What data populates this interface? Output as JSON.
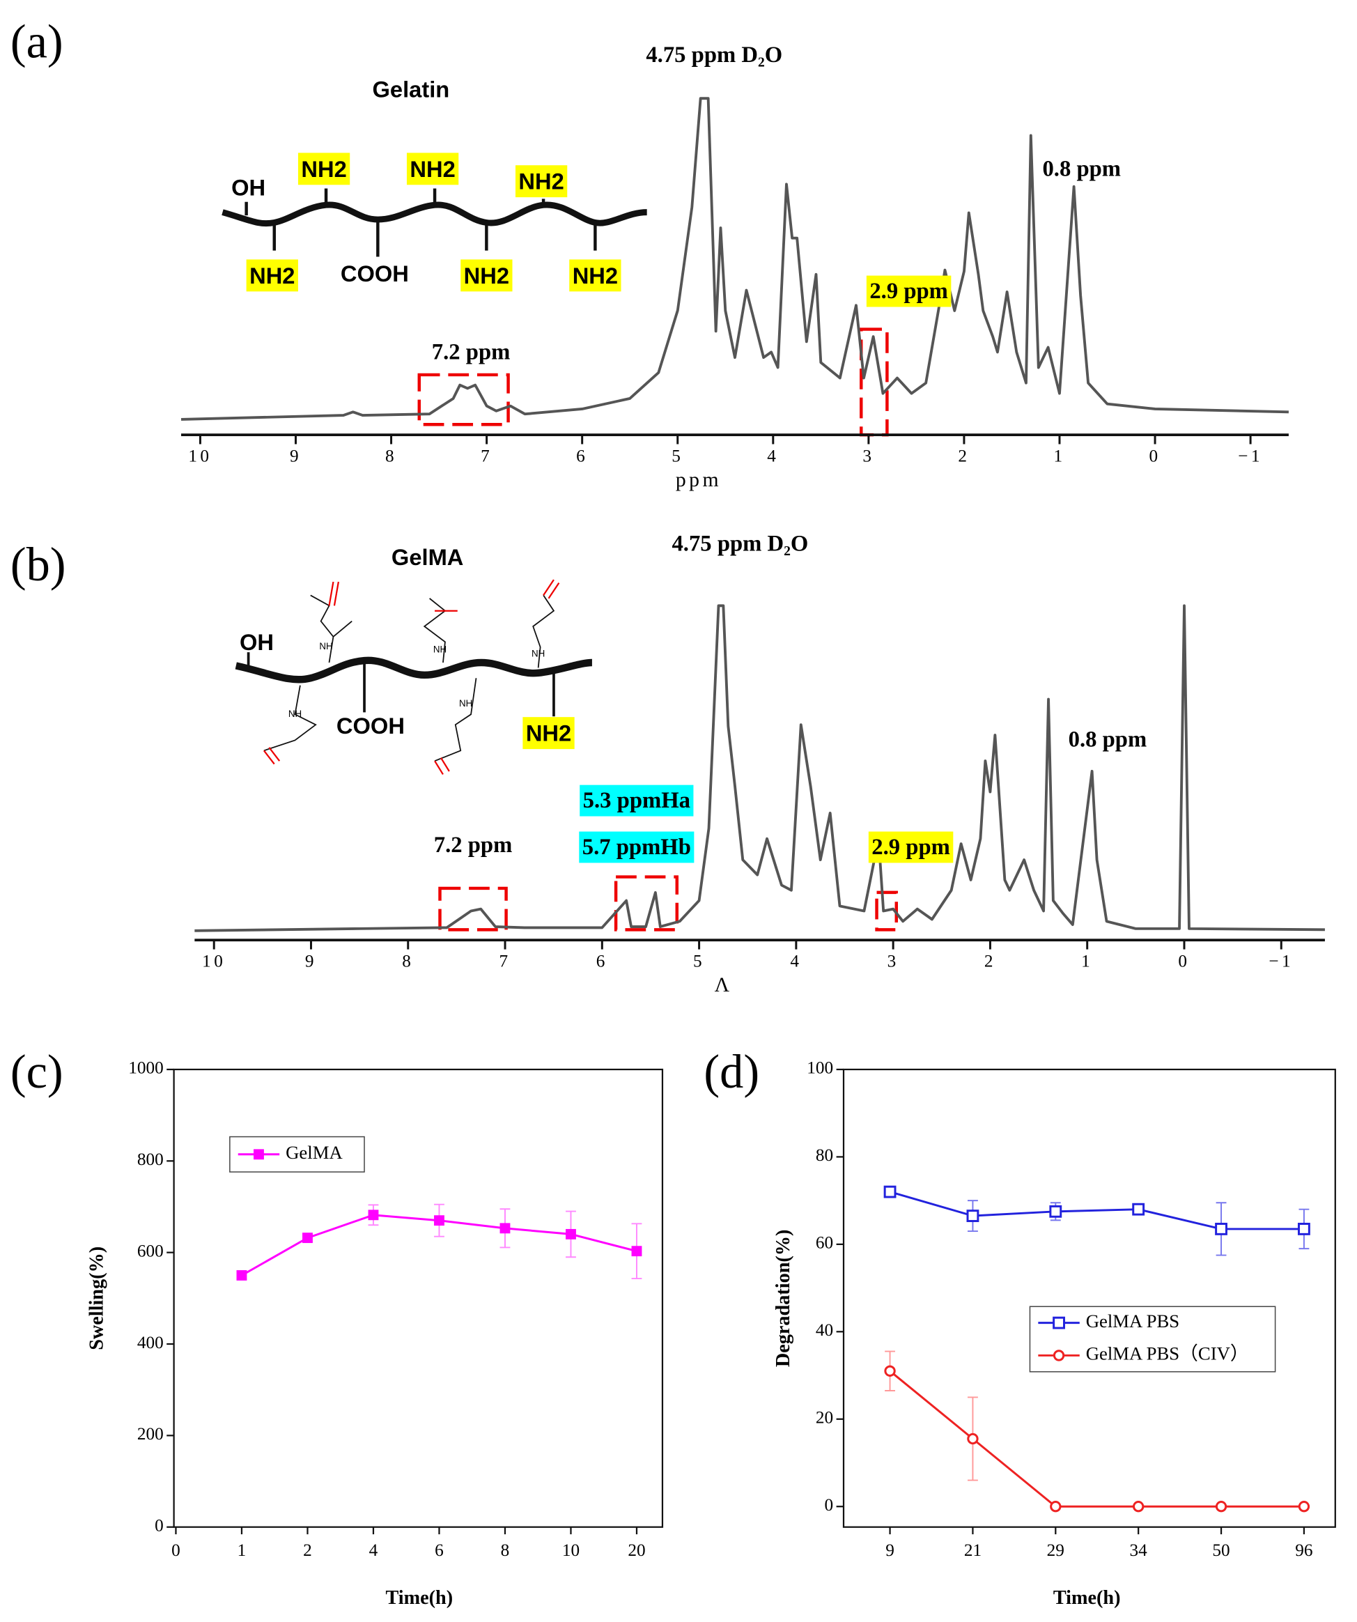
{
  "chart_data": [
    {
      "type": "line",
      "panel_label": "(a)",
      "xlabel": "ppm",
      "color": "#555555",
      "annotations": [
        "4.75 ppm D₂O",
        "0.8 ppm",
        "2.9 ppm",
        "7.2 ppm"
      ],
      "structure": [
        "Gelatin",
        "OH",
        "NH2",
        "NH2",
        "NH2",
        "NH2",
        "NH2",
        "NH2",
        "COOH"
      ],
      "xlim": [
        10.2,
        -1.4
      ],
      "ylim": [
        0,
        100
      ],
      "xticks": [
        10,
        9,
        8,
        7,
        6,
        5,
        4,
        3,
        2,
        1,
        0,
        {
          "value": -1,
          "label": "−1"
        }
      ],
      "x": [
        10.2,
        8.5,
        8.4,
        8.3,
        7.6,
        7.35,
        7.28,
        7.2,
        7.12,
        7.0,
        6.9,
        6.75,
        6.6,
        6.0,
        5.5,
        5.2,
        5.0,
        4.85,
        4.76,
        4.68,
        4.6,
        4.55,
        4.5,
        4.4,
        4.28,
        4.1,
        4.02,
        3.95,
        3.86,
        3.8,
        3.75,
        3.65,
        3.55,
        3.5,
        3.3,
        3.13,
        3.05,
        2.95,
        2.85,
        2.7,
        2.55,
        2.4,
        2.25,
        2.2,
        2.1,
        2.0,
        1.95,
        1.85,
        1.8,
        1.7,
        1.65,
        1.55,
        1.45,
        1.35,
        1.3,
        1.22,
        1.12,
        1.0,
        0.85,
        0.78,
        0.7,
        0.5,
        0.0,
        -1.4
      ],
      "values": [
        4.6,
        5.8,
        6.8,
        5.8,
        6.2,
        10.8,
        14.8,
        13.8,
        14.8,
        8.6,
        7.1,
        8.6,
        6.2,
        7.7,
        10.8,
        18.5,
        37,
        67.7,
        100,
        100,
        30.8,
        61.5,
        36.9,
        23,
        43,
        23,
        24.6,
        20,
        74.5,
        58.5,
        58.5,
        27.7,
        47.7,
        21.5,
        16.9,
        38.5,
        16.9,
        29.2,
        12.3,
        16.9,
        12.3,
        15.4,
        40,
        49,
        36.9,
        48.6,
        66,
        47.7,
        36.9,
        29.2,
        24.6,
        42.5,
        24.6,
        15.4,
        89,
        20,
        26,
        12.3,
        73.8,
        41.5,
        15.4,
        9.2,
        7.7,
        6.8
      ]
    },
    {
      "type": "line",
      "panel_label": "(b)",
      "xlabel": "Λ",
      "color": "#555555",
      "annotations": [
        "4.75 ppm D₂O",
        "0.8 ppm",
        "2.9 ppm",
        "7.2 ppm",
        "5.3 ppmHa",
        "5.7 ppmHb"
      ],
      "structure": [
        "GelMA",
        "OH",
        "COOH",
        "NH2",
        "NH",
        "NH",
        "NH",
        "NH",
        "NH"
      ],
      "xlim": [
        10.2,
        -1.45
      ],
      "ylim": [
        0,
        100
      ],
      "xticks": [
        10,
        9,
        8,
        7,
        6,
        5,
        4,
        3,
        2,
        1,
        0,
        {
          "value": -1,
          "label": "−1"
        }
      ],
      "x": [
        10.2,
        8.5,
        7.6,
        7.35,
        7.25,
        7.1,
        6.8,
        6.0,
        5.75,
        5.7,
        5.55,
        5.45,
        5.4,
        5.2,
        5.0,
        4.9,
        4.8,
        4.75,
        4.7,
        4.63,
        4.55,
        4.4,
        4.3,
        4.15,
        4.05,
        3.95,
        3.85,
        3.75,
        3.65,
        3.55,
        3.3,
        3.15,
        3.1,
        3.0,
        2.9,
        2.75,
        2.6,
        2.4,
        2.3,
        2.2,
        2.1,
        2.05,
        2.0,
        1.95,
        1.85,
        1.8,
        1.65,
        1.55,
        1.45,
        1.4,
        1.35,
        1.25,
        1.15,
        0.95,
        0.9,
        0.8,
        0.5,
        0.05,
        0.0,
        -0.05,
        -1.45
      ],
      "values": [
        2.8,
        3.4,
        3.7,
        8.7,
        9.3,
        4,
        3.7,
        3.7,
        11.8,
        4,
        4,
        14.2,
        4,
        5.6,
        11.8,
        33.4,
        100,
        100,
        64,
        45.8,
        24,
        19.5,
        30.3,
        16.4,
        14.9,
        64.4,
        45.8,
        24,
        38,
        10.2,
        8.7,
        30.3,
        8.7,
        9.3,
        5.6,
        9.3,
        6.2,
        14.9,
        28.8,
        18,
        30.3,
        53.6,
        44.3,
        61.3,
        18,
        14.9,
        24,
        14.9,
        8.7,
        72,
        11.8,
        8,
        4.6,
        50.5,
        24,
        5.6,
        3.4,
        3.4,
        100,
        3.4,
        3.1
      ]
    },
    {
      "type": "line",
      "panel_label": "(c)",
      "xlabel": "Time(h)",
      "ylabel": "Swelling(%)",
      "categories": [
        "0",
        "1",
        "2",
        "4",
        "6",
        "8",
        "10",
        "20"
      ],
      "ylim": [
        0,
        1000
      ],
      "yticks": [
        0,
        200,
        400,
        600,
        800,
        1000
      ],
      "series": [
        {
          "name": "GelMA",
          "color": "#ff00ff",
          "error_color": "#ff88ff",
          "marker": "filled-square",
          "values": [
            null,
            550,
            632,
            682,
            670,
            653,
            640,
            603
          ],
          "errors": [
            null,
            8,
            8,
            22,
            35,
            42,
            50,
            60
          ]
        }
      ]
    },
    {
      "type": "line",
      "panel_label": "(d)",
      "xlabel": "Time(h)",
      "ylabel": "Degradation(%)",
      "categories": [
        "9",
        "21",
        "29",
        "34",
        "50",
        "96"
      ],
      "ylim": [
        -4.7,
        100
      ],
      "yticks": [
        0,
        20,
        40,
        60,
        80,
        100
      ],
      "series": [
        {
          "name": "GelMA PBS",
          "color": "#2222dd",
          "error_color": "#7777ee",
          "marker": "open-square",
          "values": [
            72,
            66.5,
            67.5,
            68,
            63.5,
            63.5
          ],
          "errors": [
            1,
            3.5,
            2,
            1,
            6,
            4.5
          ]
        },
        {
          "name": "GelMA PBS（CIV）",
          "color": "#ee2222",
          "error_color": "#ff9999",
          "marker": "open-circle",
          "values": [
            31,
            15.5,
            0,
            0,
            0,
            0
          ],
          "errors": [
            4.5,
            9.5,
            0,
            0,
            0,
            0
          ]
        }
      ]
    }
  ]
}
